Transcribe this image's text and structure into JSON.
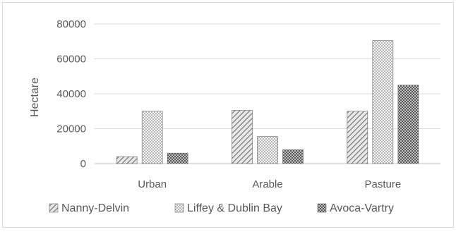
{
  "chart_data": {
    "type": "bar",
    "title": "",
    "xlabel": "",
    "ylabel": "Hectare",
    "ylim": [
      0,
      80000
    ],
    "yticks": [
      0,
      20000,
      40000,
      60000,
      80000
    ],
    "grid": true,
    "legend_position": "bottom",
    "categories": [
      "Urban",
      "Arable",
      "Pasture"
    ],
    "series": [
      {
        "name": "Nanny-Delvin",
        "values": [
          4000,
          30500,
          30000
        ],
        "pattern": "diagonal-hatch",
        "color": "#7f7f7f"
      },
      {
        "name": "Liffey & Dublin Bay",
        "values": [
          30000,
          15500,
          70500
        ],
        "pattern": "dots",
        "color": "#9a9a9a"
      },
      {
        "name": "Avoca-Vartry",
        "values": [
          6000,
          8000,
          45000
        ],
        "pattern": "dense-crosshatch",
        "color": "#3a3a3a"
      }
    ]
  }
}
